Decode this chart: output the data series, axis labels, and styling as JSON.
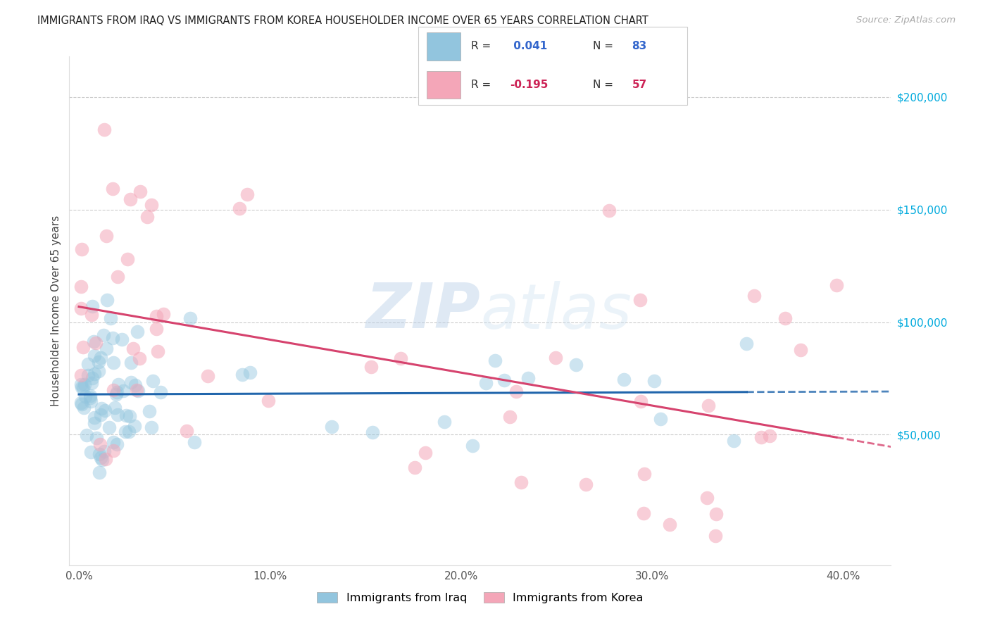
{
  "title": "IMMIGRANTS FROM IRAQ VS IMMIGRANTS FROM KOREA HOUSEHOLDER INCOME OVER 65 YEARS CORRELATION CHART",
  "source": "Source: ZipAtlas.com",
  "ylabel": "Householder Income Over 65 years",
  "xlabel_ticks": [
    "0.0%",
    "10.0%",
    "20.0%",
    "30.0%",
    "40.0%"
  ],
  "xlabel_vals": [
    0.0,
    0.1,
    0.2,
    0.3,
    0.4
  ],
  "ylabel_ticks": [
    "$50,000",
    "$100,000",
    "$150,000",
    "$200,000"
  ],
  "ylabel_vals": [
    50000,
    100000,
    150000,
    200000
  ],
  "xlim": [
    -0.005,
    0.425
  ],
  "ylim": [
    -8000,
    218000
  ],
  "iraq_R": 0.041,
  "iraq_N": 83,
  "korea_R": -0.195,
  "korea_N": 57,
  "iraq_color": "#92c5de",
  "korea_color": "#f4a6b8",
  "iraq_line_color": "#2166ac",
  "korea_line_color": "#d6436e",
  "watermark_zip": "ZIP",
  "watermark_atlas": "atlas",
  "legend_iraq_label": "Immigrants from Iraq",
  "legend_korea_label": "Immigrants from Korea",
  "legend_R_color_iraq": "#3366cc",
  "legend_R_color_korea": "#cc2255",
  "legend_N_color_iraq": "#3366cc",
  "legend_N_color_korea": "#cc2255"
}
